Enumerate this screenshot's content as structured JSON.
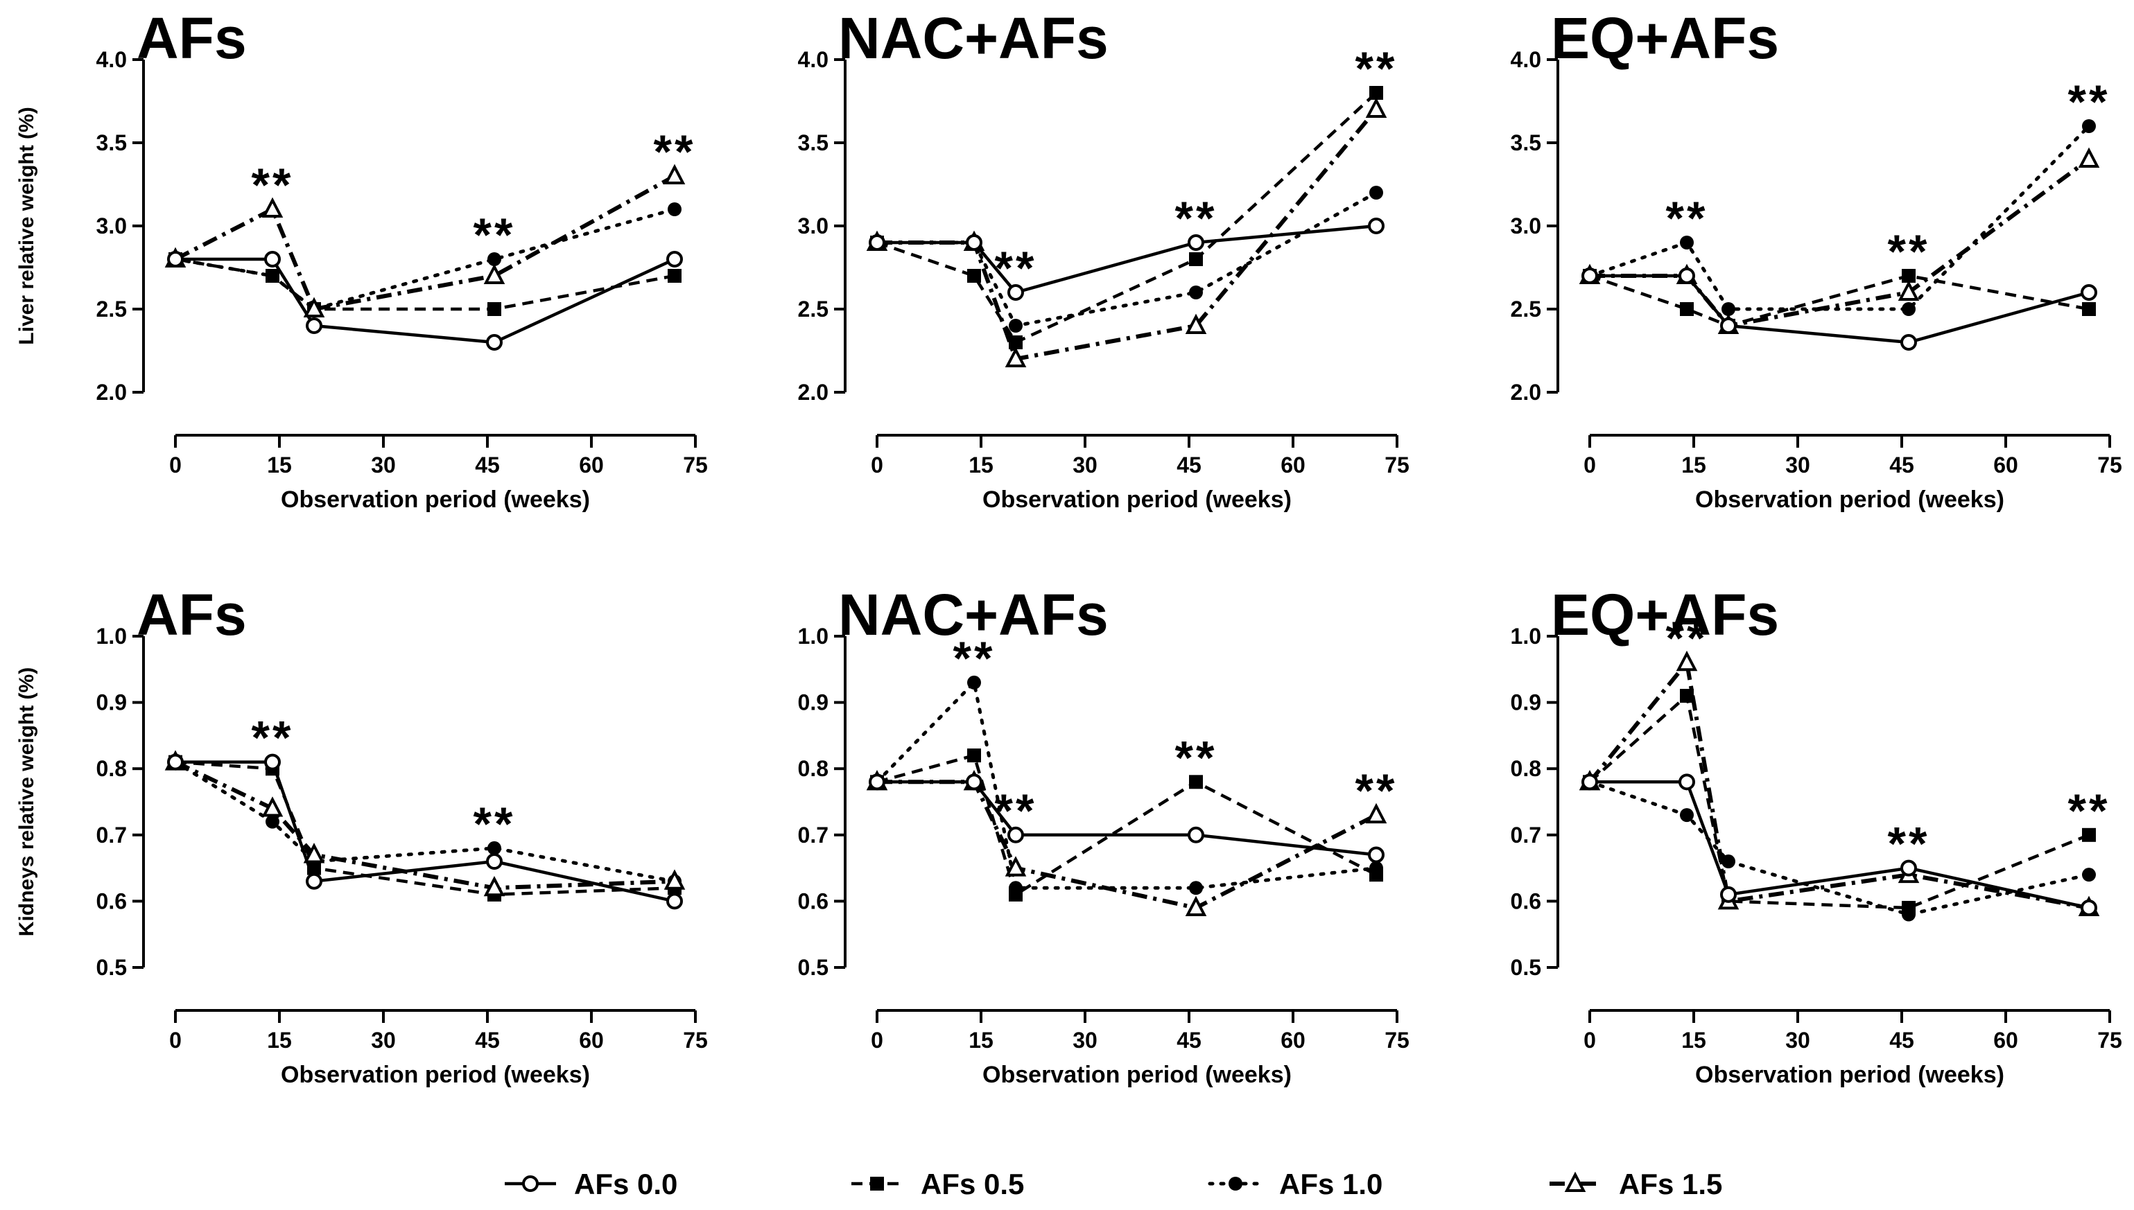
{
  "legend": [
    {
      "label": "AFs 0.0",
      "marker": "circle-open"
    },
    {
      "label": "AFs 0.5",
      "marker": "square-filled"
    },
    {
      "label": "AFs 1.0",
      "marker": "circle-filled"
    },
    {
      "label": "AFs 1.5",
      "marker": "triangle-open"
    }
  ],
  "chart_data": [
    {
      "type": "line",
      "title": "AFs",
      "xlabel": "Observation period (weeks)",
      "ylabel": "Liver relative weight (%)",
      "xlim": [
        0,
        75
      ],
      "ylim": [
        2.0,
        4.0
      ],
      "xticks": [
        "0",
        "15",
        "30",
        "45",
        "60",
        "75"
      ],
      "yticks": [
        "2.0",
        "2.5",
        "3.0",
        "3.5",
        "4.0"
      ],
      "x": [
        0,
        14,
        20,
        46,
        72
      ],
      "series": [
        {
          "name": "AFs 0.0",
          "values": [
            2.8,
            2.8,
            2.4,
            2.3,
            2.8
          ]
        },
        {
          "name": "AFs 0.5",
          "values": [
            2.8,
            2.7,
            2.5,
            2.5,
            2.7
          ]
        },
        {
          "name": "AFs 1.0",
          "values": [
            2.8,
            2.7,
            2.5,
            2.8,
            3.1
          ]
        },
        {
          "name": "AFs 1.5",
          "values": [
            2.8,
            3.1,
            2.5,
            2.7,
            3.3
          ]
        }
      ],
      "annotations": [
        {
          "text": "**",
          "x": 14,
          "y": 3.1
        },
        {
          "text": "**",
          "x": 46,
          "y": 2.8
        },
        {
          "text": "**",
          "x": 72,
          "y": 3.3
        }
      ]
    },
    {
      "type": "line",
      "title": "NAC+AFs",
      "xlabel": "Observation period (weeks)",
      "ylabel": "",
      "xlim": [
        0,
        75
      ],
      "ylim": [
        2.0,
        4.0
      ],
      "xticks": [
        "0",
        "15",
        "30",
        "45",
        "60",
        "75"
      ],
      "yticks": [
        "2.0",
        "2.5",
        "3.0",
        "3.5",
        "4.0"
      ],
      "x": [
        0,
        14,
        20,
        46,
        72
      ],
      "series": [
        {
          "name": "AFs 0.0",
          "values": [
            2.9,
            2.9,
            2.6,
            2.9,
            3.0
          ]
        },
        {
          "name": "AFs 0.5",
          "values": [
            2.9,
            2.7,
            2.3,
            2.8,
            3.8
          ]
        },
        {
          "name": "AFs 1.0",
          "values": [
            2.9,
            2.9,
            2.4,
            2.6,
            3.2
          ]
        },
        {
          "name": "AFs 1.5",
          "values": [
            2.9,
            2.9,
            2.2,
            2.4,
            3.7
          ]
        }
      ],
      "annotations": [
        {
          "text": "**",
          "x": 20,
          "y": 2.6
        },
        {
          "text": "**",
          "x": 46,
          "y": 2.9
        },
        {
          "text": "**",
          "x": 72,
          "y": 3.8
        }
      ]
    },
    {
      "type": "line",
      "title": "EQ+AFs",
      "xlabel": "Observation period (weeks)",
      "ylabel": "",
      "xlim": [
        0,
        75
      ],
      "ylim": [
        2.0,
        4.0
      ],
      "xticks": [
        "0",
        "15",
        "30",
        "45",
        "60",
        "75"
      ],
      "yticks": [
        "2.0",
        "2.5",
        "3.0",
        "3.5",
        "4.0"
      ],
      "x": [
        0,
        14,
        20,
        46,
        72
      ],
      "series": [
        {
          "name": "AFs 0.0",
          "values": [
            2.7,
            2.7,
            2.4,
            2.3,
            2.6
          ]
        },
        {
          "name": "AFs 0.5",
          "values": [
            2.7,
            2.5,
            2.4,
            2.7,
            2.5
          ]
        },
        {
          "name": "AFs 1.0",
          "values": [
            2.7,
            2.9,
            2.5,
            2.5,
            3.6
          ]
        },
        {
          "name": "AFs 1.5",
          "values": [
            2.7,
            2.7,
            2.4,
            2.6,
            3.4
          ]
        }
      ],
      "annotations": [
        {
          "text": "**",
          "x": 14,
          "y": 2.9
        },
        {
          "text": "**",
          "x": 46,
          "y": 2.7
        },
        {
          "text": "**",
          "x": 72,
          "y": 3.6
        }
      ]
    },
    {
      "type": "line",
      "title": "AFs",
      "xlabel": "Observation period (weeks)",
      "ylabel": "Kidneys relative weight (%)",
      "xlim": [
        0,
        75
      ],
      "ylim": [
        0.5,
        1.0
      ],
      "xticks": [
        "0",
        "15",
        "30",
        "45",
        "60",
        "75"
      ],
      "yticks": [
        "0.5",
        "0.6",
        "0.7",
        "0.8",
        "0.9",
        "1.0"
      ],
      "x": [
        0,
        14,
        20,
        46,
        72
      ],
      "series": [
        {
          "name": "AFs 0.0",
          "values": [
            0.81,
            0.81,
            0.63,
            0.66,
            0.6
          ]
        },
        {
          "name": "AFs 0.5",
          "values": [
            0.81,
            0.8,
            0.65,
            0.61,
            0.62
          ]
        },
        {
          "name": "AFs 1.0",
          "values": [
            0.81,
            0.72,
            0.66,
            0.68,
            0.63
          ]
        },
        {
          "name": "AFs 1.5",
          "values": [
            0.81,
            0.74,
            0.67,
            0.62,
            0.63
          ]
        }
      ],
      "annotations": [
        {
          "text": "**",
          "x": 14,
          "y": 0.81
        },
        {
          "text": "**",
          "x": 46,
          "y": 0.68
        }
      ]
    },
    {
      "type": "line",
      "title": "NAC+AFs",
      "xlabel": "Observation period (weeks)",
      "ylabel": "",
      "xlim": [
        0,
        75
      ],
      "ylim": [
        0.5,
        1.0
      ],
      "xticks": [
        "0",
        "15",
        "30",
        "45",
        "60",
        "75"
      ],
      "yticks": [
        "0.5",
        "0.6",
        "0.7",
        "0.8",
        "0.9",
        "1.0"
      ],
      "x": [
        0,
        14,
        20,
        46,
        72
      ],
      "series": [
        {
          "name": "AFs 0.0",
          "values": [
            0.78,
            0.78,
            0.7,
            0.7,
            0.67
          ]
        },
        {
          "name": "AFs 0.5",
          "values": [
            0.78,
            0.82,
            0.61,
            0.78,
            0.64
          ]
        },
        {
          "name": "AFs 1.0",
          "values": [
            0.78,
            0.93,
            0.62,
            0.62,
            0.65
          ]
        },
        {
          "name": "AFs 1.5",
          "values": [
            0.78,
            0.78,
            0.65,
            0.59,
            0.73
          ]
        }
      ],
      "annotations": [
        {
          "text": "**",
          "x": 14,
          "y": 0.93
        },
        {
          "text": "**",
          "x": 20,
          "y": 0.7
        },
        {
          "text": "**",
          "x": 46,
          "y": 0.78
        },
        {
          "text": "**",
          "x": 72,
          "y": 0.73
        }
      ]
    },
    {
      "type": "line",
      "title": "EQ+AFs",
      "xlabel": "Observation period (weeks)",
      "ylabel": "",
      "xlim": [
        0,
        75
      ],
      "ylim": [
        0.5,
        1.0
      ],
      "xticks": [
        "0",
        "15",
        "30",
        "45",
        "60",
        "75"
      ],
      "yticks": [
        "0.5",
        "0.6",
        "0.7",
        "0.8",
        "0.9",
        "1.0"
      ],
      "x": [
        0,
        14,
        20,
        46,
        72
      ],
      "series": [
        {
          "name": "AFs 0.0",
          "values": [
            0.78,
            0.78,
            0.61,
            0.65,
            0.59
          ]
        },
        {
          "name": "AFs 0.5",
          "values": [
            0.78,
            0.91,
            0.6,
            0.59,
            0.7
          ]
        },
        {
          "name": "AFs 1.0",
          "values": [
            0.78,
            0.73,
            0.66,
            0.58,
            0.64
          ]
        },
        {
          "name": "AFs 1.5",
          "values": [
            0.78,
            0.96,
            0.6,
            0.64,
            0.59
          ]
        }
      ],
      "annotations": [
        {
          "text": "**",
          "x": 14,
          "y": 0.96
        },
        {
          "text": "**",
          "x": 46,
          "y": 0.65
        },
        {
          "text": "**",
          "x": 72,
          "y": 0.7
        }
      ]
    }
  ]
}
